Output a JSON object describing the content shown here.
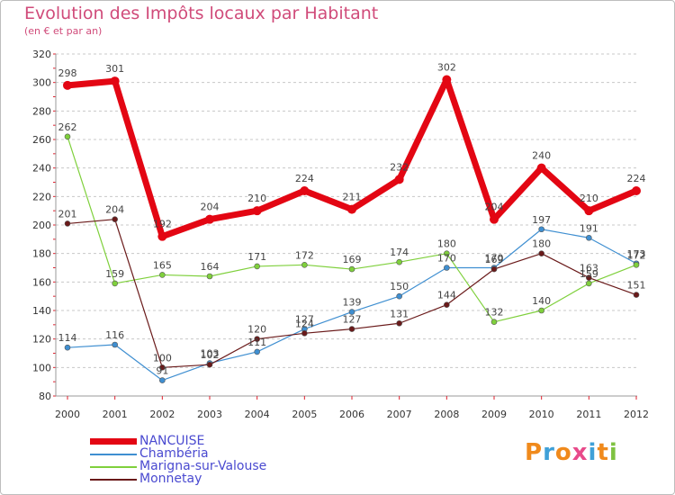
{
  "title": "Evolution des Impôts locaux par Habitant",
  "subtitle": "(en € et par an)",
  "brand": "Proxiti",
  "colors": {
    "title": "#d04b7a",
    "legend_text": "#4a4ad0",
    "grid": "#c8c8c8",
    "axis_tick": "#e0202e"
  },
  "chart_data": {
    "type": "line",
    "title": "Evolution des Impôts locaux par Habitant",
    "subtitle": "(en € et par an)",
    "xlabel": "",
    "ylabel": "",
    "x": [
      "2000",
      "2001",
      "2002",
      "2003",
      "2004",
      "2005",
      "2006",
      "2007",
      "2008",
      "2009",
      "2010",
      "2011",
      "2012"
    ],
    "ylim": [
      80,
      320
    ],
    "yticks": [
      80,
      100,
      120,
      140,
      160,
      180,
      200,
      220,
      240,
      260,
      280,
      300,
      320
    ],
    "grid": "horizontal dashed",
    "legend_position": "bottom-left",
    "series": [
      {
        "name": "NANCUISE",
        "color": "#e30613",
        "bold": true,
        "values": [
          298,
          301,
          192,
          204,
          210,
          224,
          211,
          232,
          302,
          204,
          240,
          210,
          224
        ]
      },
      {
        "name": "Chambéria",
        "color": "#3f8fd1",
        "bold": false,
        "values": [
          114,
          116,
          91,
          103,
          111,
          127,
          139,
          150,
          170,
          170,
          197,
          191,
          173
        ]
      },
      {
        "name": "Marigna-sur-Valouse",
        "color": "#7fd03c",
        "bold": false,
        "values": [
          262,
          159,
          165,
          164,
          171,
          172,
          169,
          174,
          180,
          132,
          140,
          159,
          172
        ]
      },
      {
        "name": "Monnetay",
        "color": "#6a1a1a",
        "bold": false,
        "values": [
          201,
          204,
          100,
          102,
          120,
          124,
          127,
          131,
          144,
          169,
          180,
          163,
          151
        ]
      }
    ]
  }
}
